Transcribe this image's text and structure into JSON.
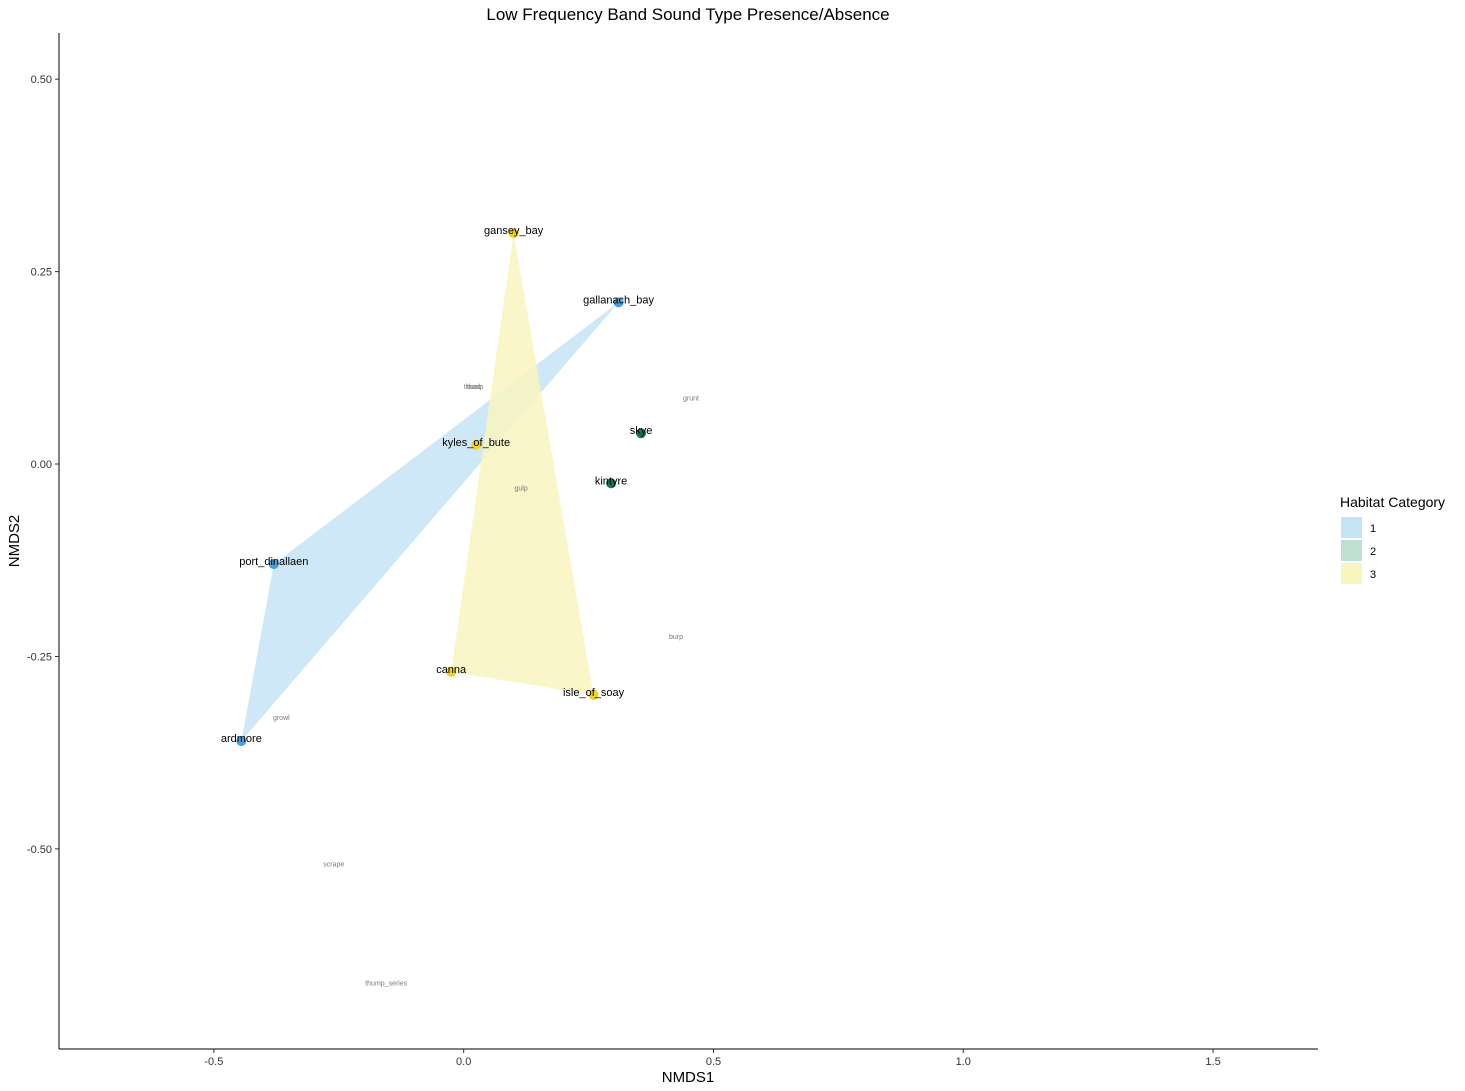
{
  "chart_data": {
    "type": "scatter",
    "title": "Low Frequency Band Sound Type Presence/Absence",
    "xlabel": "NMDS1",
    "ylabel": "NMDS2",
    "xlim": [
      -0.81,
      1.71
    ],
    "ylim": [
      -0.76,
      0.56
    ],
    "x_ticks": [
      -0.5,
      0.0,
      0.5,
      1.0,
      1.5
    ],
    "x_tick_labels": [
      "-0.5",
      "0.0",
      "0.5",
      "1.0",
      "1.5"
    ],
    "y_ticks": [
      0.5,
      0.25,
      0.0,
      -0.25,
      -0.5
    ],
    "y_tick_labels": [
      "0.50",
      "0.25",
      "0.00",
      "-0.25",
      "-0.50"
    ],
    "grid": false,
    "legend": {
      "title": "Habitat Category",
      "placement": "right",
      "entries": [
        {
          "label": "1",
          "fill": "#c7e4f6"
        },
        {
          "label": "2",
          "fill": "#bde0d3"
        },
        {
          "label": "3",
          "fill": "#f9f5c1"
        }
      ]
    },
    "habitat_colors": {
      "1": {
        "point": "#4aa0db",
        "hull": "#c7e4f6"
      },
      "2": {
        "point": "#137a55",
        "hull": "#bde0d3"
      },
      "3": {
        "point": "#f2d41e",
        "hull": "#f9f5c1"
      }
    },
    "sites": [
      {
        "label": "gansey_bay",
        "x": 0.1,
        "y": 0.3,
        "habitat": "3"
      },
      {
        "label": "gallanach_bay",
        "x": 0.31,
        "y": 0.21,
        "habitat": "1"
      },
      {
        "label": "skye",
        "x": 0.355,
        "y": 0.04,
        "habitat": "2"
      },
      {
        "label": "kyles_of_bute",
        "x": 0.025,
        "y": 0.025,
        "habitat": "3"
      },
      {
        "label": "kintyre",
        "x": 0.295,
        "y": -0.025,
        "habitat": "2"
      },
      {
        "label": "port_dinallaen",
        "x": -0.38,
        "y": -0.13,
        "habitat": "1"
      },
      {
        "label": "canna",
        "x": -0.025,
        "y": -0.27,
        "habitat": "3"
      },
      {
        "label": "isle_of_soay",
        "x": 0.26,
        "y": -0.3,
        "habitat": "3"
      },
      {
        "label": "ardmore",
        "x": -0.445,
        "y": -0.36,
        "habitat": "1"
      }
    ],
    "hulls": [
      {
        "habitat": "1",
        "sites": [
          "gallanach_bay",
          "port_dinallaen",
          "ardmore"
        ]
      },
      {
        "habitat": "3",
        "sites": [
          "gansey_bay",
          "isle_of_soay",
          "canna"
        ]
      }
    ],
    "species": [
      {
        "label": "thump",
        "x": 0.02,
        "y": 0.1
      },
      {
        "label": "thud",
        "x": 0.02,
        "y": 0.1
      },
      {
        "label": "grunt",
        "x": 0.455,
        "y": 0.085
      },
      {
        "label": "gulp",
        "x": 0.115,
        "y": -0.032
      },
      {
        "label": "burp",
        "x": 0.425,
        "y": -0.225
      },
      {
        "label": "growl",
        "x": -0.365,
        "y": -0.33
      },
      {
        "label": "scrape",
        "x": -0.26,
        "y": -0.52
      },
      {
        "label": "thump_series",
        "x": -0.155,
        "y": -0.675
      }
    ]
  }
}
